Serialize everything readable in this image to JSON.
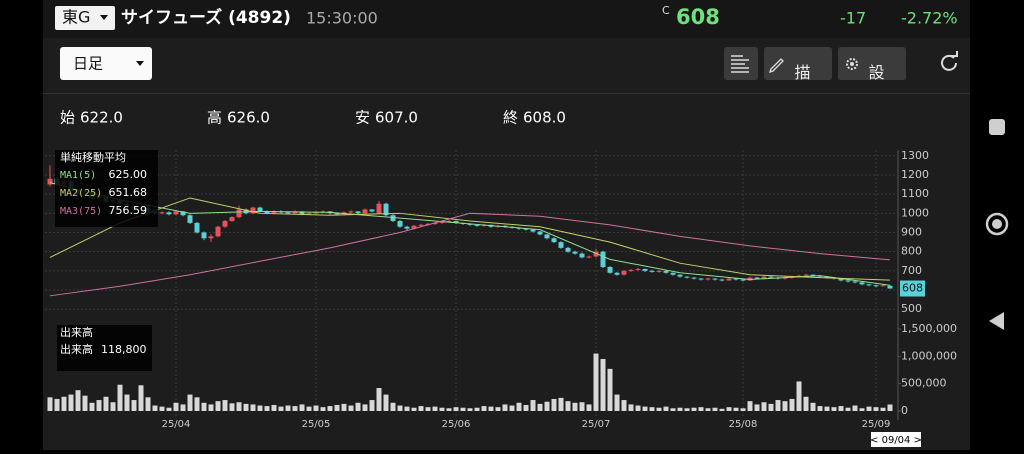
{
  "header": {
    "market": "東G",
    "name": "サイフューズ (4892)",
    "time": "15:30:00",
    "price_prefix": "C",
    "price": "608",
    "change": "-17",
    "change_pct": "-2.72%"
  },
  "toolbar": {
    "period": "日足",
    "draw": "描画",
    "settings": "設定"
  },
  "summary": [
    {
      "label": "始",
      "value": "622.0"
    },
    {
      "label": "高",
      "value": "626.0"
    },
    {
      "label": "安",
      "value": "607.0"
    },
    {
      "label": "終",
      "value": "608.0"
    }
  ],
  "price_chart": {
    "type": "candlestick",
    "up_color": "#e8505b",
    "down_color": "#5ad0d8",
    "grid": true,
    "ylim": [
      470,
      1330
    ],
    "yticks": [
      500,
      600,
      700,
      800,
      900,
      1000,
      1100,
      1200,
      1300
    ],
    "last_price": 608,
    "candles": [
      [
        1150,
        1250,
        1140,
        1180
      ],
      [
        1180,
        1190,
        1140,
        1150
      ],
      [
        1150,
        1180,
        1145,
        1170
      ],
      [
        1170,
        1175,
        1110,
        1120
      ],
      [
        1120,
        1130,
        1090,
        1100
      ],
      [
        1100,
        1120,
        1095,
        1110
      ],
      [
        1110,
        1115,
        1075,
        1080
      ],
      [
        1080,
        1100,
        1075,
        1090
      ],
      [
        1090,
        1095,
        1055,
        1060
      ],
      [
        1060,
        1080,
        1055,
        1070
      ],
      [
        1070,
        1075,
        1045,
        1050
      ],
      [
        1050,
        1060,
        1035,
        1040
      ],
      [
        1040,
        1045,
        1015,
        1020
      ],
      [
        1020,
        1040,
        1015,
        1030
      ],
      [
        1030,
        1035,
        1005,
        1010
      ],
      [
        1010,
        1015,
        995,
        1000
      ],
      [
        1000,
        1010,
        995,
        1005
      ],
      [
        1005,
        1010,
        990,
        995
      ],
      [
        995,
        1015,
        990,
        1010
      ],
      [
        1010,
        1012,
        985,
        990
      ],
      [
        990,
        995,
        945,
        950
      ],
      [
        950,
        955,
        895,
        900
      ],
      [
        900,
        905,
        860,
        870
      ],
      [
        870,
        890,
        850,
        880
      ],
      [
        880,
        935,
        875,
        930
      ],
      [
        930,
        965,
        925,
        960
      ],
      [
        960,
        985,
        955,
        980
      ],
      [
        980,
        1040,
        975,
        1020
      ],
      [
        1020,
        1025,
        995,
        1000
      ],
      [
        1000,
        1035,
        995,
        1030
      ],
      [
        1030,
        1035,
        1005,
        1010
      ],
      [
        1010,
        1015,
        995,
        1000
      ],
      [
        1000,
        1015,
        995,
        1010
      ],
      [
        1010,
        1015,
        1000,
        1005
      ],
      [
        1005,
        1010,
        995,
        1000
      ],
      [
        1000,
        1015,
        995,
        1010
      ],
      [
        1010,
        1012,
        990,
        995
      ],
      [
        995,
        1005,
        990,
        1000
      ],
      [
        1000,
        1010,
        995,
        1005
      ],
      [
        1005,
        1015,
        1000,
        1010
      ],
      [
        1010,
        1012,
        995,
        1000
      ],
      [
        1000,
        1005,
        990,
        995
      ],
      [
        995,
        1010,
        990,
        1005
      ],
      [
        1005,
        1015,
        1000,
        1010
      ],
      [
        1010,
        1012,
        995,
        1000
      ],
      [
        1000,
        1025,
        995,
        1020
      ],
      [
        1020,
        1022,
        1005,
        1010
      ],
      [
        1000,
        1065,
        995,
        1050
      ],
      [
        1050,
        1055,
        985,
        990
      ],
      [
        990,
        995,
        955,
        960
      ],
      [
        960,
        965,
        925,
        930
      ],
      [
        930,
        935,
        910,
        920
      ],
      [
        920,
        940,
        915,
        935
      ],
      [
        935,
        945,
        930,
        940
      ],
      [
        940,
        950,
        935,
        945
      ],
      [
        945,
        955,
        940,
        950
      ],
      [
        950,
        960,
        945,
        955
      ],
      [
        955,
        965,
        950,
        960
      ],
      [
        960,
        962,
        945,
        950
      ],
      [
        950,
        952,
        940,
        945
      ],
      [
        945,
        948,
        935,
        940
      ],
      [
        940,
        942,
        930,
        935
      ],
      [
        935,
        945,
        930,
        940
      ],
      [
        940,
        942,
        925,
        930
      ],
      [
        930,
        940,
        925,
        935
      ],
      [
        935,
        938,
        925,
        930
      ],
      [
        930,
        932,
        920,
        925
      ],
      [
        925,
        928,
        915,
        920
      ],
      [
        920,
        922,
        910,
        915
      ],
      [
        915,
        918,
        900,
        905
      ],
      [
        905,
        908,
        885,
        890
      ],
      [
        890,
        892,
        865,
        870
      ],
      [
        870,
        875,
        845,
        850
      ],
      [
        850,
        855,
        815,
        820
      ],
      [
        820,
        825,
        795,
        800
      ],
      [
        800,
        805,
        785,
        790
      ],
      [
        790,
        795,
        765,
        770
      ],
      [
        770,
        780,
        765,
        775
      ],
      [
        775,
        815,
        770,
        800
      ],
      [
        800,
        805,
        715,
        720
      ],
      [
        720,
        725,
        685,
        690
      ],
      [
        690,
        695,
        675,
        680
      ],
      [
        680,
        705,
        675,
        700
      ],
      [
        700,
        710,
        695,
        705
      ],
      [
        705,
        715,
        700,
        710
      ],
      [
        710,
        712,
        695,
        700
      ],
      [
        700,
        705,
        690,
        695
      ],
      [
        695,
        705,
        690,
        700
      ],
      [
        700,
        702,
        685,
        690
      ],
      [
        690,
        692,
        675,
        680
      ],
      [
        680,
        682,
        665,
        670
      ],
      [
        670,
        672,
        660,
        665
      ],
      [
        665,
        668,
        655,
        660
      ],
      [
        660,
        662,
        650,
        655
      ],
      [
        655,
        665,
        650,
        660
      ],
      [
        660,
        662,
        650,
        655
      ],
      [
        655,
        658,
        645,
        650
      ],
      [
        650,
        665,
        648,
        660
      ],
      [
        660,
        662,
        650,
        655
      ],
      [
        655,
        658,
        645,
        650
      ],
      [
        650,
        670,
        648,
        665
      ],
      [
        665,
        668,
        655,
        660
      ],
      [
        660,
        675,
        655,
        670
      ],
      [
        670,
        672,
        660,
        665
      ],
      [
        665,
        668,
        655,
        660
      ],
      [
        660,
        670,
        655,
        665
      ],
      [
        665,
        675,
        660,
        670
      ],
      [
        670,
        680,
        665,
        675
      ],
      [
        675,
        685,
        670,
        680
      ],
      [
        680,
        682,
        670,
        675
      ],
      [
        675,
        678,
        665,
        670
      ],
      [
        670,
        672,
        660,
        665
      ],
      [
        665,
        668,
        655,
        660
      ],
      [
        660,
        662,
        645,
        650
      ],
      [
        650,
        652,
        640,
        645
      ],
      [
        645,
        648,
        635,
        640
      ],
      [
        640,
        642,
        625,
        630
      ],
      [
        630,
        632,
        620,
        625
      ],
      [
        625,
        628,
        615,
        620
      ],
      [
        620,
        630,
        618,
        625
      ],
      [
        622,
        626,
        607,
        608
      ]
    ],
    "dates": [
      null,
      null,
      null,
      null,
      null,
      null,
      null,
      null,
      null,
      null,
      null,
      null,
      null,
      null,
      null,
      null,
      null,
      null,
      "25/04",
      null,
      null,
      null,
      null,
      null,
      null,
      null,
      null,
      null,
      null,
      null,
      null,
      null,
      null,
      null,
      null,
      null,
      null,
      null,
      "25/05",
      null,
      null,
      null,
      null,
      null,
      null,
      null,
      null,
      null,
      null,
      null,
      null,
      null,
      null,
      null,
      null,
      null,
      null,
      null,
      "25/06",
      null,
      null,
      null,
      null,
      null,
      null,
      null,
      null,
      null,
      null,
      null,
      null,
      null,
      null,
      null,
      null,
      null,
      null,
      null,
      "25/07",
      null,
      null,
      null,
      null,
      null,
      null,
      null,
      null,
      null,
      null,
      null,
      null,
      null,
      null,
      null,
      null,
      null,
      null,
      null,
      null,
      "25/08",
      null,
      null,
      null,
      null,
      null,
      null,
      null,
      null,
      null,
      null,
      null,
      null,
      null,
      null,
      null,
      null,
      null,
      null,
      "25/09",
      null,
      null
    ],
    "legend_title": "単純移動平均",
    "ma": [
      {
        "name": "MA1(5)",
        "color": "#8fe08f",
        "readout": "625.00",
        "values": [
          1160,
          1070,
          1000,
          1010,
          1005,
          975,
          945,
          915,
          760,
          690,
          655,
          675,
          625
        ]
      },
      {
        "name": "MA2(25)",
        "color": "#c8cf6a",
        "readout": "651.68",
        "values": [
          770,
          950,
          1080,
          1000,
          990,
          1000,
          960,
          930,
          850,
          740,
          680,
          665,
          652
        ]
      },
      {
        "name": "MA3(75)",
        "color": "#d070a0",
        "readout": "756.59",
        "values": [
          570,
          620,
          680,
          750,
          820,
          900,
          1000,
          985,
          940,
          880,
          830,
          790,
          757
        ]
      }
    ]
  },
  "volume_chart": {
    "type": "bar",
    "title": "出来高",
    "readout_label": "出来高",
    "readout": "118,800",
    "color": "#d8d8d8",
    "ylim": [
      0,
      1590000
    ],
    "yticks": [
      0,
      {
        "value": 500000,
        "label": "500,000"
      },
      {
        "value": 1000000,
        "label": "1,000,000"
      },
      {
        "value": 1500000,
        "label": "1,500,000"
      }
    ],
    "values": [
      250000,
      220000,
      260000,
      300000,
      380000,
      280000,
      150000,
      200000,
      260000,
      160000,
      480000,
      300000,
      200000,
      470000,
      250000,
      100000,
      80000,
      60000,
      150000,
      120000,
      300000,
      250000,
      150000,
      120000,
      180000,
      200000,
      140000,
      160000,
      130000,
      120000,
      100000,
      90000,
      110000,
      80000,
      100000,
      90000,
      120000,
      80000,
      100000,
      70000,
      90000,
      110000,
      130000,
      100000,
      150000,
      120000,
      200000,
      420000,
      300000,
      150000,
      100000,
      80000,
      60000,
      90000,
      70000,
      80000,
      60000,
      50000,
      70000,
      60000,
      50000,
      60000,
      90000,
      80000,
      70000,
      120000,
      100000,
      150000,
      110000,
      200000,
      130000,
      170000,
      220000,
      240000,
      180000,
      150000,
      160000,
      120000,
      1050000,
      950000,
      770000,
      300000,
      200000,
      120000,
      100000,
      80000,
      70000,
      60000,
      80000,
      50000,
      60000,
      50000,
      60000,
      70000,
      50000,
      60000,
      40000,
      70000,
      60000,
      50000,
      180000,
      120000,
      160000,
      130000,
      200000,
      180000,
      220000,
      540000,
      260000,
      150000,
      90000,
      80000,
      70000,
      90000,
      60000,
      100000,
      50000,
      80000,
      70000,
      60000,
      118800
    ]
  },
  "cursor_date": "< 09/04 >"
}
